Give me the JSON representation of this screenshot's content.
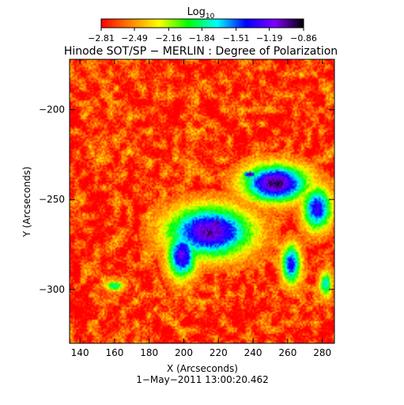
{
  "chart_data": {
    "type": "heatmap",
    "title": "Hinode SOT/SP − MERLIN : Degree of Polarization",
    "subtitle": "1−May−2011 13:00:20.462",
    "xlabel": "X (Arcseconds)",
    "ylabel": "Y (Arcseconds)",
    "xlim": [
      134,
      287
    ],
    "ylim": [
      -330,
      -172
    ],
    "xticks": [
      140,
      160,
      180,
      200,
      220,
      240,
      260,
      280
    ],
    "xtick_labels": [
      "140",
      "160",
      "180",
      "200",
      "220",
      "240",
      "260",
      "280"
    ],
    "yticks": [
      -200,
      -250,
      -300
    ],
    "ytick_labels": [
      "−200",
      "−250",
      "−300"
    ],
    "colorbar": {
      "label_base": "Log",
      "label_sub": "10",
      "range": [
        -2.81,
        -0.86
      ],
      "ticks": [
        -2.81,
        -2.49,
        -2.16,
        -1.84,
        -1.51,
        -1.19,
        -0.86
      ],
      "tick_labels": [
        "−2.81",
        "−2.49",
        "−2.16",
        "−1.84",
        "−1.51",
        "−1.19",
        "−0.86"
      ],
      "colors": [
        "#ff0000",
        "#ff8000",
        "#ffff00",
        "#00ff00",
        "#00ffff",
        "#0000ff",
        "#8000ff",
        "#000000"
      ]
    },
    "background_level": -2.7,
    "regions": [
      {
        "x": 215,
        "y": -268,
        "rx": 26,
        "ry": 15,
        "peak": -1.05
      },
      {
        "x": 199,
        "y": -281,
        "rx": 9,
        "ry": 14,
        "peak": -1.2
      },
      {
        "x": 253,
        "y": -241,
        "rx": 20,
        "ry": 11,
        "peak": -0.95
      },
      {
        "x": 238,
        "y": -236,
        "rx": 4,
        "ry": 2,
        "peak": -0.86
      },
      {
        "x": 219,
        "y": -263,
        "rx": 4,
        "ry": 3,
        "peak": -0.9
      },
      {
        "x": 277,
        "y": -255,
        "rx": 9,
        "ry": 13,
        "peak": -1.3
      },
      {
        "x": 262,
        "y": -286,
        "rx": 6,
        "ry": 12,
        "peak": -1.35
      },
      {
        "x": 160,
        "y": -298,
        "rx": 6,
        "ry": 3,
        "peak": -1.8
      },
      {
        "x": 282,
        "y": -297,
        "rx": 4,
        "ry": 8,
        "peak": -1.7
      }
    ]
  }
}
